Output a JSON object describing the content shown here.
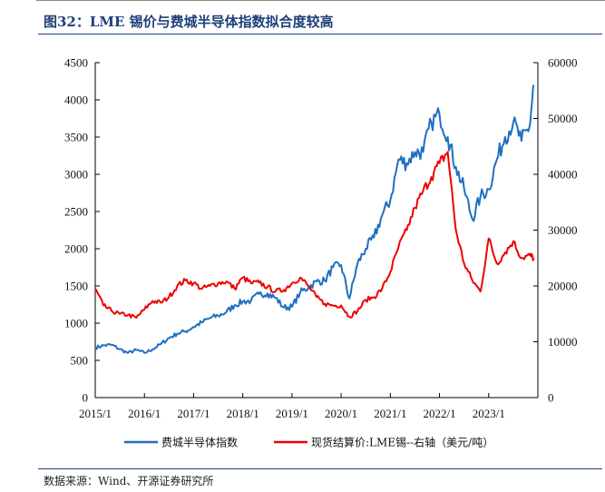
{
  "figure": {
    "title": "图32：LME 锡价与费城半导体指数拟合度较高",
    "source": "数据来源：Wind、开源证券研究所"
  },
  "colors": {
    "series_1": "#1f6fc0",
    "series_2": "#ee0000",
    "axis": "#000000"
  },
  "chart_data": {
    "type": "line",
    "title": "",
    "xlabel": "",
    "ylabel": "",
    "y2label": "",
    "grid": false,
    "legend_position": "bottom",
    "x_ticks": [
      "2015/1",
      "2016/1",
      "2017/1",
      "2018/1",
      "2019/1",
      "2020/1",
      "2021/1",
      "2022/1",
      "2023/1"
    ],
    "y_left": {
      "lim": [
        0,
        4500
      ],
      "ticks": [
        0,
        500,
        1000,
        1500,
        2000,
        2500,
        3000,
        3500,
        4000,
        4500
      ]
    },
    "y_right": {
      "lim": [
        0,
        60000
      ],
      "ticks": [
        0,
        10000,
        20000,
        30000,
        40000,
        50000,
        60000
      ]
    },
    "series": [
      {
        "name": "费城半导体指数",
        "axis": "left",
        "x": [
          "2015/1",
          "2015/3",
          "2015/5",
          "2015/7",
          "2015/9",
          "2015/11",
          "2016/1",
          "2016/3",
          "2016/5",
          "2016/7",
          "2016/9",
          "2016/11",
          "2017/1",
          "2017/3",
          "2017/5",
          "2017/7",
          "2017/9",
          "2017/11",
          "2018/1",
          "2018/3",
          "2018/5",
          "2018/7",
          "2018/9",
          "2018/11",
          "2019/1",
          "2019/3",
          "2019/5",
          "2019/7",
          "2019/9",
          "2019/11",
          "2020/1",
          "2020/3",
          "2020/5",
          "2020/7",
          "2020/9",
          "2020/11",
          "2021/1",
          "2021/3",
          "2021/5",
          "2021/7",
          "2021/9",
          "2021/11",
          "2022/1",
          "2022/3",
          "2022/5",
          "2022/7",
          "2022/9",
          "2022/11",
          "2023/1",
          "2023/3",
          "2023/5",
          "2023/7",
          "2023/9",
          "2023/11",
          "2023/12"
        ],
        "values": [
          670,
          700,
          710,
          650,
          600,
          640,
          600,
          650,
          720,
          800,
          860,
          890,
          950,
          1010,
          1070,
          1100,
          1150,
          1240,
          1290,
          1300,
          1390,
          1400,
          1340,
          1210,
          1220,
          1410,
          1480,
          1560,
          1570,
          1750,
          1780,
          1330,
          1800,
          2000,
          2150,
          2450,
          2650,
          3200,
          3150,
          3300,
          3300,
          3700,
          3800,
          3500,
          3100,
          2800,
          2400,
          2700,
          2800,
          3200,
          3500,
          3700,
          3450,
          3650,
          4200
        ]
      },
      {
        "name": "现货结算价:LME锡--右轴（美元/吨）",
        "axis": "right",
        "x": [
          "2015/1",
          "2015/3",
          "2015/5",
          "2015/7",
          "2015/9",
          "2015/11",
          "2016/1",
          "2016/3",
          "2016/5",
          "2016/7",
          "2016/9",
          "2016/11",
          "2017/1",
          "2017/3",
          "2017/5",
          "2017/7",
          "2017/9",
          "2017/11",
          "2018/1",
          "2018/3",
          "2018/5",
          "2018/7",
          "2018/9",
          "2018/11",
          "2019/1",
          "2019/3",
          "2019/5",
          "2019/7",
          "2019/9",
          "2019/11",
          "2020/1",
          "2020/3",
          "2020/5",
          "2020/7",
          "2020/9",
          "2020/11",
          "2021/1",
          "2021/3",
          "2021/5",
          "2021/7",
          "2021/9",
          "2021/11",
          "2022/1",
          "2022/3",
          "2022/5",
          "2022/7",
          "2022/9",
          "2022/11",
          "2023/1",
          "2023/3",
          "2023/5",
          "2023/7",
          "2023/9",
          "2023/11",
          "2023/12"
        ],
        "values": [
          19500,
          16500,
          15500,
          15000,
          14800,
          14300,
          15800,
          17300,
          17000,
          18000,
          20000,
          21000,
          20500,
          19500,
          20000,
          20500,
          20800,
          19500,
          21500,
          20500,
          20600,
          19800,
          19000,
          19300,
          20500,
          21500,
          20000,
          18000,
          16800,
          16500,
          16500,
          14500,
          15500,
          17500,
          18000,
          19500,
          22500,
          27000,
          30000,
          34000,
          37000,
          39500,
          42000,
          44000,
          30000,
          24000,
          21000,
          19000,
          28500,
          24000,
          26000,
          28000,
          25000,
          25500,
          25000
        ]
      }
    ]
  }
}
